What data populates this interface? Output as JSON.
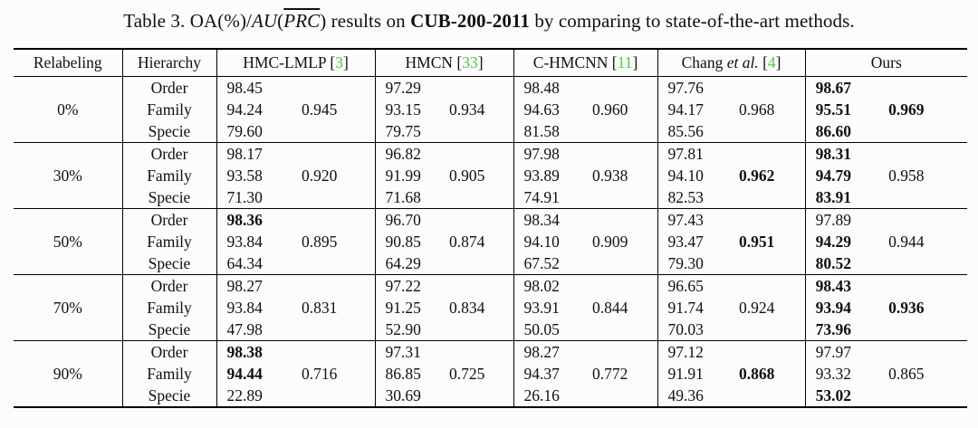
{
  "colors": {
    "citation_green": "#46cd46",
    "text": "#101010",
    "background": "#fcfcfb"
  },
  "caption": {
    "prefix": "Table 3. OA(%)/",
    "au": "AU",
    "open_paren": "(",
    "prc": "PRC",
    "close_paren": ")",
    "mid": " results on ",
    "dataset": "CUB-200-2011",
    "suffix": " by comparing to state-of-the-art methods."
  },
  "table": {
    "header": {
      "relabeling": "Relabeling",
      "hierarchy": "Hierarchy",
      "cite_open": "[",
      "cite_close": "]",
      "methods": [
        {
          "name": "HMC-LMLP ",
          "name_italic": "",
          "cite": "3"
        },
        {
          "name": "HMCN ",
          "name_italic": "",
          "cite": "33"
        },
        {
          "name": "C-HMCNN ",
          "name_italic": "",
          "cite": "11"
        },
        {
          "name": "Chang ",
          "name_italic": "et al.",
          "cite": "4"
        },
        {
          "name": "Ours",
          "name_italic": "",
          "cite": ""
        }
      ]
    },
    "blocks": [
      {
        "relabeling": "0%",
        "rows": [
          {
            "hierarchy": "Order",
            "oa": [
              "98.45",
              "97.29",
              "98.48",
              "97.76",
              "98.67"
            ],
            "oa_bold": [
              false,
              false,
              false,
              false,
              true
            ]
          },
          {
            "hierarchy": "Family",
            "oa": [
              "94.24",
              "93.15",
              "94.63",
              "94.17",
              "95.51"
            ],
            "oa_bold": [
              false,
              false,
              false,
              false,
              true
            ],
            "auprc": [
              "0.945",
              "0.934",
              "0.960",
              "0.968",
              "0.969"
            ],
            "auprc_bold": [
              false,
              false,
              false,
              false,
              true
            ]
          },
          {
            "hierarchy": "Specie",
            "oa": [
              "79.60",
              "79.75",
              "81.58",
              "85.56",
              "86.60"
            ],
            "oa_bold": [
              false,
              false,
              false,
              false,
              true
            ]
          }
        ]
      },
      {
        "relabeling": "30%",
        "rows": [
          {
            "hierarchy": "Order",
            "oa": [
              "98.17",
              "96.82",
              "97.98",
              "97.81",
              "98.31"
            ],
            "oa_bold": [
              false,
              false,
              false,
              false,
              true
            ]
          },
          {
            "hierarchy": "Family",
            "oa": [
              "93.58",
              "91.99",
              "93.89",
              "94.10",
              "94.79"
            ],
            "oa_bold": [
              false,
              false,
              false,
              false,
              true
            ],
            "auprc": [
              "0.920",
              "0.905",
              "0.938",
              "0.962",
              "0.958"
            ],
            "auprc_bold": [
              false,
              false,
              false,
              true,
              false
            ]
          },
          {
            "hierarchy": "Specie",
            "oa": [
              "71.30",
              "71.68",
              "74.91",
              "82.53",
              "83.91"
            ],
            "oa_bold": [
              false,
              false,
              false,
              false,
              true
            ]
          }
        ]
      },
      {
        "relabeling": "50%",
        "rows": [
          {
            "hierarchy": "Order",
            "oa": [
              "98.36",
              "96.70",
              "98.34",
              "97.43",
              "97.89"
            ],
            "oa_bold": [
              true,
              false,
              false,
              false,
              false
            ]
          },
          {
            "hierarchy": "Family",
            "oa": [
              "93.84",
              "90.85",
              "94.10",
              "93.47",
              "94.29"
            ],
            "oa_bold": [
              false,
              false,
              false,
              false,
              true
            ],
            "auprc": [
              "0.895",
              "0.874",
              "0.909",
              "0.951",
              "0.944"
            ],
            "auprc_bold": [
              false,
              false,
              false,
              true,
              false
            ]
          },
          {
            "hierarchy": "Specie",
            "oa": [
              "64.34",
              "64.29",
              "67.52",
              "79.30",
              "80.52"
            ],
            "oa_bold": [
              false,
              false,
              false,
              false,
              true
            ]
          }
        ]
      },
      {
        "relabeling": "70%",
        "rows": [
          {
            "hierarchy": "Order",
            "oa": [
              "98.27",
              "97.22",
              "98.02",
              "96.65",
              "98.43"
            ],
            "oa_bold": [
              false,
              false,
              false,
              false,
              true
            ]
          },
          {
            "hierarchy": "Family",
            "oa": [
              "93.84",
              "91.25",
              "93.91",
              "91.74",
              "93.94"
            ],
            "oa_bold": [
              false,
              false,
              false,
              false,
              true
            ],
            "auprc": [
              "0.831",
              "0.834",
              "0.844",
              "0.924",
              "0.936"
            ],
            "auprc_bold": [
              false,
              false,
              false,
              false,
              true
            ]
          },
          {
            "hierarchy": "Specie",
            "oa": [
              "47.98",
              "52.90",
              "50.05",
              "70.03",
              "73.96"
            ],
            "oa_bold": [
              false,
              false,
              false,
              false,
              true
            ]
          }
        ]
      },
      {
        "relabeling": "90%",
        "rows": [
          {
            "hierarchy": "Order",
            "oa": [
              "98.38",
              "97.31",
              "98.27",
              "97.12",
              "97.97"
            ],
            "oa_bold": [
              true,
              false,
              false,
              false,
              false
            ]
          },
          {
            "hierarchy": "Family",
            "oa": [
              "94.44",
              "86.85",
              "94.37",
              "91.91",
              "93.32"
            ],
            "oa_bold": [
              true,
              false,
              false,
              false,
              false
            ],
            "auprc": [
              "0.716",
              "0.725",
              "0.772",
              "0.868",
              "0.865"
            ],
            "auprc_bold": [
              false,
              false,
              false,
              true,
              false
            ]
          },
          {
            "hierarchy": "Specie",
            "oa": [
              "22.89",
              "30.69",
              "26.16",
              "49.36",
              "53.02"
            ],
            "oa_bold": [
              false,
              false,
              false,
              false,
              true
            ]
          }
        ]
      }
    ]
  }
}
